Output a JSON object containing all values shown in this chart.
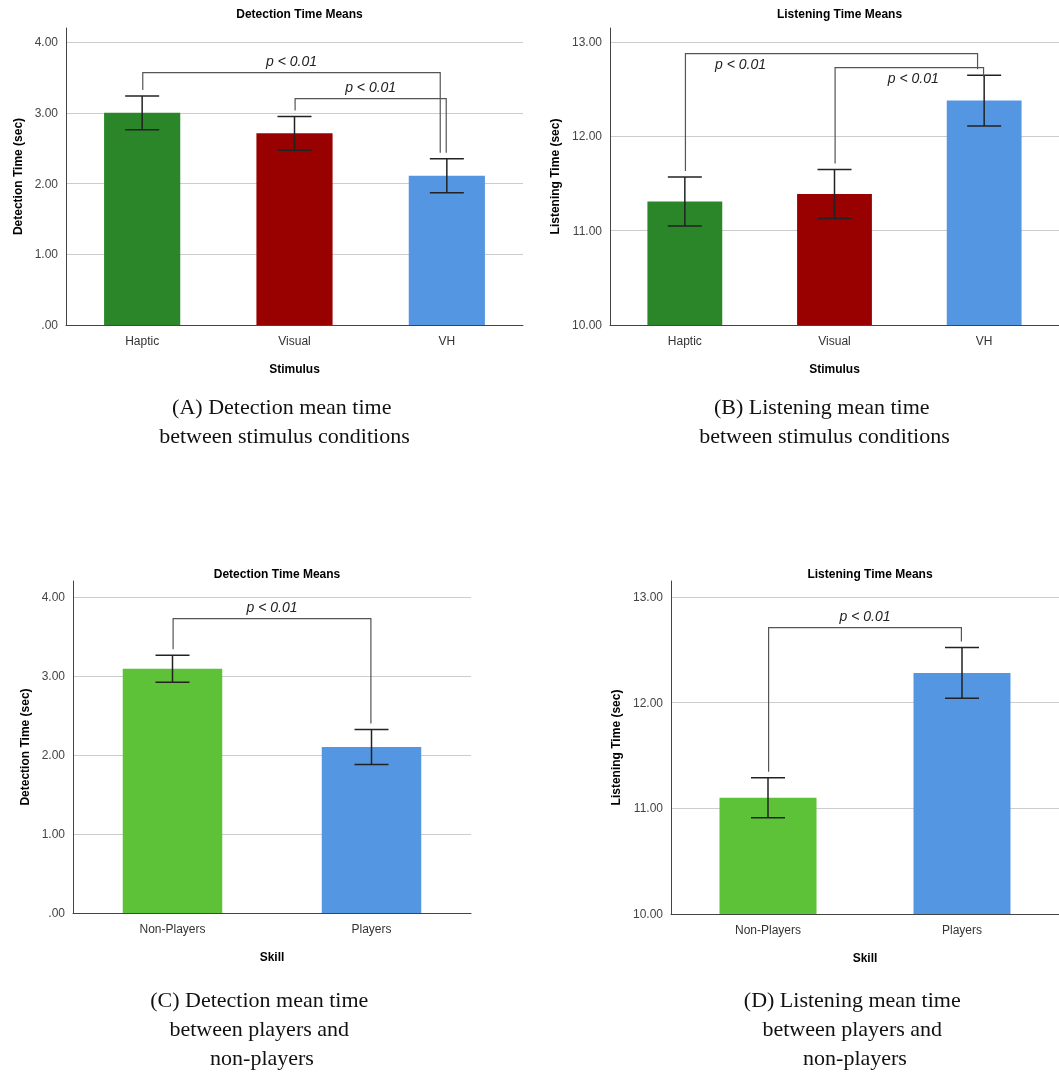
{
  "chart_data": [
    {
      "type": "bar",
      "title": "Detection Time Means",
      "xlabel": "Stimulus",
      "ylabel": "Detection Time (sec)",
      "categories": [
        "Haptic",
        "Visual",
        "VH"
      ],
      "values": [
        3.0,
        2.71,
        2.11
      ],
      "colors": [
        "#2b8529",
        "#990000",
        "#5596e3"
      ],
      "errors": [
        0.24,
        0.24,
        0.24
      ],
      "ylim": [
        0,
        4.2
      ],
      "yticks": [
        {
          "value": 0,
          "label": ".00"
        },
        {
          "value": 1,
          "label": "1.00"
        },
        {
          "value": 2,
          "label": "2.00"
        },
        {
          "value": 3,
          "label": "3.00"
        },
        {
          "value": 4,
          "label": "4.00"
        }
      ],
      "grid": "y",
      "annotations": [
        "p < 0.01",
        "p < 0.01",
        "(A) Detection mean time between stimulus conditions"
      ]
    },
    {
      "type": "bar",
      "title": "Listening Time Means",
      "xlabel": "Stimulus",
      "ylabel": "Listening Time (sec)",
      "categories": [
        "Haptic",
        "Visual",
        "VH"
      ],
      "values": [
        11.31,
        11.39,
        12.38
      ],
      "colors": [
        "#2b8529",
        "#990000",
        "#5596e3"
      ],
      "errors": [
        0.26,
        0.26,
        0.27
      ],
      "ylim": [
        10,
        13.15
      ],
      "yticks": [
        {
          "value": 10,
          "label": "10.00"
        },
        {
          "value": 11,
          "label": "11.00"
        },
        {
          "value": 12,
          "label": "12.00"
        },
        {
          "value": 13,
          "label": "13.00"
        }
      ],
      "grid": "y",
      "annotations": [
        "p < 0.01",
        "p < 0.01",
        "(B) Listening mean time between stimulus conditions"
      ]
    },
    {
      "type": "bar",
      "title": "Detection Time Means",
      "xlabel": "Skill",
      "ylabel": "Detection Time (sec)",
      "categories": [
        "Non-Players",
        "Players"
      ],
      "values": [
        3.09,
        2.1
      ],
      "colors": [
        "#5ec238",
        "#5596e3"
      ],
      "errors": [
        0.17,
        0.22
      ],
      "ylim": [
        0,
        4.2
      ],
      "yticks": [
        {
          "value": 0,
          "label": ".00"
        },
        {
          "value": 1,
          "label": "1.00"
        },
        {
          "value": 2,
          "label": "2.00"
        },
        {
          "value": 3,
          "label": "3.00"
        },
        {
          "value": 4,
          "label": "4.00"
        }
      ],
      "grid": "y",
      "annotations": [
        "p < 0.01",
        "(C) Detection mean time between players and non-players"
      ]
    },
    {
      "type": "bar",
      "title": "Listening Time Means",
      "xlabel": "Skill",
      "ylabel": "Listening Time (sec)",
      "categories": [
        "Non-Players",
        "Players"
      ],
      "values": [
        11.1,
        12.28
      ],
      "colors": [
        "#5ec238",
        "#5596e3"
      ],
      "errors": [
        0.19,
        0.24
      ],
      "ylim": [
        10,
        13.15
      ],
      "yticks": [
        {
          "value": 10,
          "label": "10.00"
        },
        {
          "value": 11,
          "label": "11.00"
        },
        {
          "value": 12,
          "label": "12.00"
        },
        {
          "value": 13,
          "label": "13.00"
        }
      ],
      "grid": "y",
      "annotations": [
        "p < 0.01",
        "(D) Listening mean time between players and non-players"
      ]
    }
  ]
}
